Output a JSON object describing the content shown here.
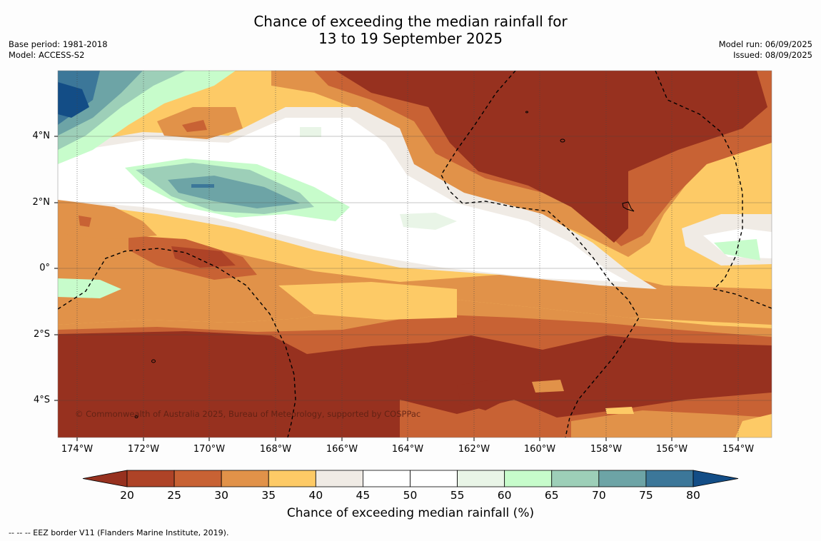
{
  "title": {
    "line1": "Chance of exceeding the median rainfall for",
    "line2": "13 to 19 September 2025"
  },
  "meta": {
    "base_period": "Base period: 1981-2018",
    "model": "Model: ACCESS-S2",
    "model_run": "Model run: 06/09/2025",
    "issued": "Issued: 08/09/2025"
  },
  "copyright": "© Commonwealth of Australia 2025, Bureau of Meteorology, supported by COSPPac",
  "footnote": "--  --  -- EEZ border V11 (Flanders Marine Institute, 2019).",
  "map": {
    "lat_labels": [
      "4°N",
      "2°N",
      "0°",
      "2°S",
      "4°S"
    ],
    "lon_labels": [
      "174°W",
      "172°W",
      "170°W",
      "168°W",
      "166°W",
      "164°W",
      "162°W",
      "160°W",
      "158°W",
      "156°W",
      "154°W"
    ],
    "lat_range": [
      -5.2,
      5.9
    ],
    "lon_range": [
      -174.6,
      -153.0
    ]
  },
  "colorbar": {
    "label": "Chance of exceeding median rainfall (%)",
    "ticks": [
      "20",
      "25",
      "30",
      "35",
      "40",
      "45",
      "50",
      "55",
      "60",
      "65",
      "70",
      "75",
      "80"
    ],
    "under_color": "#97311f",
    "over_color": "#134d86",
    "colors": [
      "#ae4327",
      "#c86234",
      "#e19249",
      "#fdca66",
      "#f0ebe5",
      "#ffffff",
      "#ffffff",
      "#e9f5e7",
      "#c7fccb",
      "#9dcfb8",
      "#6da4a6",
      "#3c7799"
    ]
  }
}
